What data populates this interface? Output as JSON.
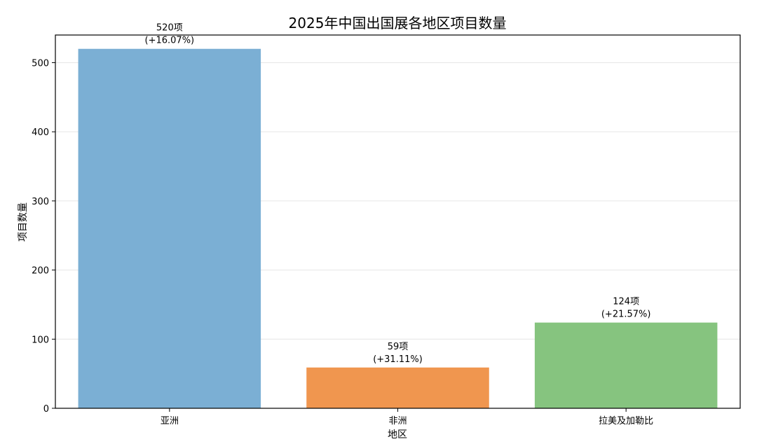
{
  "chart_data": {
    "type": "bar",
    "title": "2025年中国出国展各地区项目数量",
    "xlabel": "地区",
    "ylabel": "项目数量",
    "categories": [
      "亚洲",
      "非洲",
      "拉美及加勒比"
    ],
    "values": [
      520,
      59,
      124
    ],
    "value_labels": [
      "520项",
      "59项",
      "124项"
    ],
    "growth_labels": [
      "(+16.07%)",
      "(+31.11%)",
      "(+21.57%)"
    ],
    "colors": [
      "#7bafd4",
      "#f0964f",
      "#86c47f"
    ],
    "ylim": [
      0,
      540
    ],
    "yticks": [
      0,
      100,
      200,
      300,
      400,
      500
    ],
    "grid": true
  }
}
